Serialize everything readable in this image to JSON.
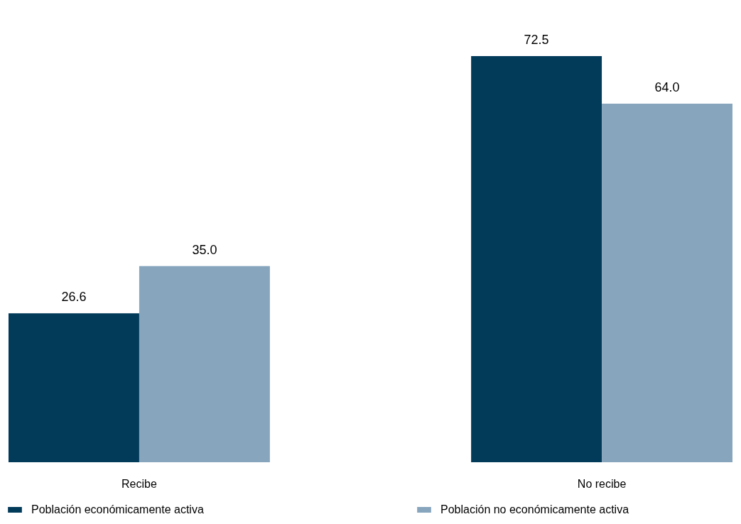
{
  "chart_data": {
    "type": "bar",
    "categories": [
      "Recibe",
      "No recibe"
    ],
    "series": [
      {
        "name": "Población económicamente activa",
        "color": "#023a5a",
        "values": [
          26.6,
          72.5
        ],
        "value_labels": [
          "26.6",
          "72.5"
        ]
      },
      {
        "name": "Población no económicamente activa",
        "color": "#87a5bd",
        "values": [
          35.0,
          64.0
        ],
        "value_labels": [
          "35.0",
          "64.0"
        ]
      }
    ],
    "legend": "bottom",
    "grid": false
  }
}
